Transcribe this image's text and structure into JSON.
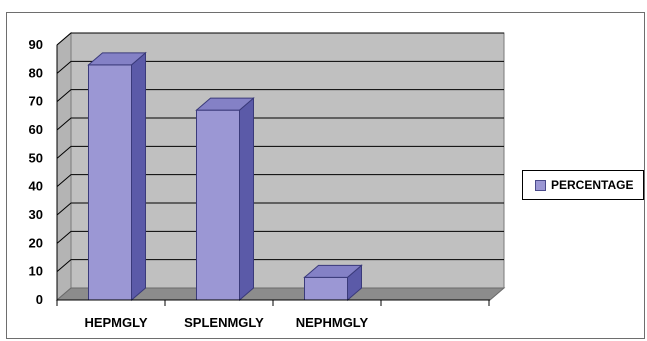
{
  "chart_data": {
    "type": "bar",
    "categories": [
      "HEPMGLY",
      "SPLENMGLY",
      "NEPHMGLY"
    ],
    "series": [
      {
        "name": "PERCENTAGE",
        "values": [
          83,
          67,
          8
        ]
      }
    ],
    "title": "",
    "xlabel": "",
    "ylabel": "",
    "ylim": [
      0,
      90
    ],
    "yticks": [
      "0",
      "10",
      "20",
      "30",
      "40",
      "50",
      "60",
      "70",
      "80",
      "90"
    ],
    "grid": true,
    "legend_position": "right",
    "colors": {
      "bar_front": "#9b97d4",
      "bar_side": "#5b5aa8",
      "bar_top": "#8481c6",
      "wall": "#c0c0c0",
      "floor": "#8c8c8c",
      "gridline": "#000000"
    }
  },
  "legend": {
    "label": "PERCENTAGE"
  }
}
